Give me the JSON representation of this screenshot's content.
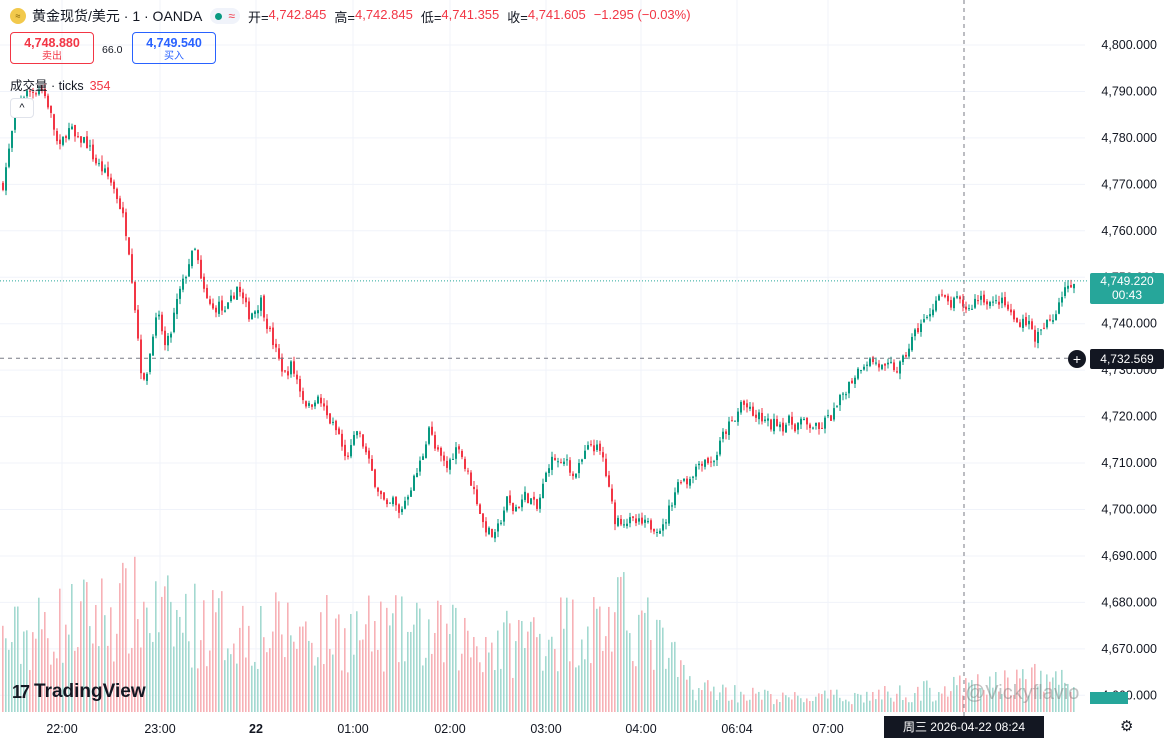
{
  "header": {
    "symbol": "黄金现货/美元 · 1 · OANDA",
    "logo_text": "≈",
    "market_wave": "≈",
    "open_label": "开=",
    "open_value": "4,742.845",
    "high_label": "高=",
    "high_value": "4,742.845",
    "low_label": "低=",
    "low_value": "4,741.355",
    "close_label": "收=",
    "close_value": "4,741.605",
    "change": "−1.295 (−0.03%)"
  },
  "trade": {
    "sell_price": "4,748.880",
    "sell_label": "卖出",
    "spread": "66.0",
    "buy_price": "4,749.540",
    "buy_label": "买入"
  },
  "volume_indicator": {
    "label": "成交量 · ticks",
    "value": "354",
    "collapse_icon": "^"
  },
  "price_labels": {
    "current_price": "4,749.220",
    "countdown": "00:43",
    "crosshair_price": "4,732.569",
    "crosshair_icon": "+"
  },
  "time_tooltip": "周三  2026-04-22   08:24",
  "brand": "TradingView",
  "brand_icon": "17",
  "watermark": "@Vickyflavio",
  "colors": {
    "up": "#089981",
    "down": "#f23645",
    "up_volume": "#a3d9d0",
    "down_volume": "#f7b1b6",
    "grid": "#f0f3fa",
    "current_line": "#26a69a"
  },
  "chart_data": {
    "type": "candlestick",
    "symbol": "XAUUSD",
    "interval": "1",
    "x_ticks": [
      "22:00",
      "23:00",
      "22",
      "01:00",
      "02:00",
      "03:00",
      "04:00",
      "06:04",
      "07:00"
    ],
    "y_ticks": [
      "4,800.000",
      "4,790.000",
      "4,780.000",
      "4,770.000",
      "4,760.000",
      "4,750.000",
      "4,740.000",
      "4,730.000",
      "4,720.000",
      "4,710.000",
      "4,700.000",
      "4,690.000",
      "4,680.000",
      "4,670.000",
      "4,660.000"
    ],
    "ylim": [
      4660,
      4800
    ],
    "close_path": [
      {
        "t": 0,
        "p": 4770
      },
      {
        "t": 5,
        "p": 4776
      },
      {
        "t": 9,
        "p": 4781
      },
      {
        "t": 14,
        "p": 4787
      },
      {
        "t": 20,
        "p": 4789
      },
      {
        "t": 26,
        "p": 4790
      },
      {
        "t": 32,
        "p": 4790
      },
      {
        "t": 38,
        "p": 4791
      },
      {
        "t": 44,
        "p": 4788
      },
      {
        "t": 50,
        "p": 4783
      },
      {
        "t": 56,
        "p": 4777
      },
      {
        "t": 62,
        "p": 4781
      },
      {
        "t": 68,
        "p": 4782
      },
      {
        "t": 74,
        "p": 4779
      },
      {
        "t": 80,
        "p": 4780
      },
      {
        "t": 86,
        "p": 4778
      },
      {
        "t": 92,
        "p": 4775
      },
      {
        "t": 100,
        "p": 4773
      },
      {
        "t": 107,
        "p": 4771
      },
      {
        "t": 113,
        "p": 4768
      },
      {
        "t": 119,
        "p": 4764
      },
      {
        "t": 125,
        "p": 4758
      },
      {
        "t": 130,
        "p": 4748
      },
      {
        "t": 135,
        "p": 4737
      },
      {
        "t": 140,
        "p": 4726
      },
      {
        "t": 146,
        "p": 4732
      },
      {
        "t": 151,
        "p": 4740
      },
      {
        "t": 157,
        "p": 4741
      },
      {
        "t": 162,
        "p": 4735
      },
      {
        "t": 167,
        "p": 4737
      },
      {
        "t": 172,
        "p": 4743
      },
      {
        "t": 177,
        "p": 4747
      },
      {
        "t": 182,
        "p": 4750
      },
      {
        "t": 187,
        "p": 4754
      },
      {
        "t": 193,
        "p": 4756
      },
      {
        "t": 198,
        "p": 4749
      },
      {
        "t": 204,
        "p": 4745
      },
      {
        "t": 210,
        "p": 4743
      },
      {
        "t": 216,
        "p": 4744
      },
      {
        "t": 222,
        "p": 4742
      },
      {
        "t": 228,
        "p": 4745
      },
      {
        "t": 234,
        "p": 4748
      },
      {
        "t": 240,
        "p": 4745
      },
      {
        "t": 246,
        "p": 4742
      },
      {
        "t": 252,
        "p": 4743
      },
      {
        "t": 258,
        "p": 4745
      },
      {
        "t": 264,
        "p": 4740
      },
      {
        "t": 270,
        "p": 4736
      },
      {
        "t": 276,
        "p": 4732
      },
      {
        "t": 282,
        "p": 4729
      },
      {
        "t": 288,
        "p": 4731
      },
      {
        "t": 294,
        "p": 4728
      },
      {
        "t": 300,
        "p": 4724
      },
      {
        "t": 306,
        "p": 4722
      },
      {
        "t": 312,
        "p": 4724
      },
      {
        "t": 318,
        "p": 4723
      },
      {
        "t": 324,
        "p": 4720
      },
      {
        "t": 330,
        "p": 4718
      },
      {
        "t": 336,
        "p": 4716
      },
      {
        "t": 342,
        "p": 4711
      },
      {
        "t": 348,
        "p": 4713
      },
      {
        "t": 354,
        "p": 4717
      },
      {
        "t": 360,
        "p": 4714
      },
      {
        "t": 366,
        "p": 4710
      },
      {
        "t": 372,
        "p": 4706
      },
      {
        "t": 378,
        "p": 4703
      },
      {
        "t": 384,
        "p": 4700
      },
      {
        "t": 390,
        "p": 4702
      },
      {
        "t": 396,
        "p": 4699
      },
      {
        "t": 402,
        "p": 4702
      },
      {
        "t": 408,
        "p": 4705
      },
      {
        "t": 414,
        "p": 4708
      },
      {
        "t": 420,
        "p": 4712
      },
      {
        "t": 426,
        "p": 4718
      },
      {
        "t": 432,
        "p": 4713
      },
      {
        "t": 438,
        "p": 4711
      },
      {
        "t": 444,
        "p": 4709
      },
      {
        "t": 450,
        "p": 4712
      },
      {
        "t": 456,
        "p": 4714
      },
      {
        "t": 462,
        "p": 4709
      },
      {
        "t": 468,
        "p": 4706
      },
      {
        "t": 474,
        "p": 4702
      },
      {
        "t": 480,
        "p": 4697
      },
      {
        "t": 486,
        "p": 4695
      },
      {
        "t": 492,
        "p": 4694
      },
      {
        "t": 498,
        "p": 4698
      },
      {
        "t": 504,
        "p": 4702
      },
      {
        "t": 510,
        "p": 4700
      },
      {
        "t": 516,
        "p": 4701
      },
      {
        "t": 522,
        "p": 4703
      },
      {
        "t": 528,
        "p": 4702
      },
      {
        "t": 534,
        "p": 4700
      },
      {
        "t": 540,
        "p": 4705
      },
      {
        "t": 546,
        "p": 4710
      },
      {
        "t": 552,
        "p": 4711
      },
      {
        "t": 558,
        "p": 4709
      },
      {
        "t": 564,
        "p": 4711
      },
      {
        "t": 570,
        "p": 4707
      },
      {
        "t": 576,
        "p": 4709
      },
      {
        "t": 582,
        "p": 4712
      },
      {
        "t": 588,
        "p": 4714
      },
      {
        "t": 594,
        "p": 4713
      },
      {
        "t": 600,
        "p": 4711
      },
      {
        "t": 606,
        "p": 4704
      },
      {
        "t": 612,
        "p": 4698
      },
      {
        "t": 660,
        "p": 4696
      },
      {
        "t": 666,
        "p": 4700
      },
      {
        "t": 672,
        "p": 4704
      },
      {
        "t": 678,
        "p": 4707
      },
      {
        "t": 684,
        "p": 4706
      },
      {
        "t": 690,
        "p": 4708
      },
      {
        "t": 696,
        "p": 4710
      },
      {
        "t": 702,
        "p": 4711
      },
      {
        "t": 708,
        "p": 4710
      },
      {
        "t": 714,
        "p": 4712
      },
      {
        "t": 720,
        "p": 4716
      },
      {
        "t": 726,
        "p": 4718
      },
      {
        "t": 732,
        "p": 4719
      },
      {
        "t": 738,
        "p": 4723
      },
      {
        "t": 744,
        "p": 4722
      },
      {
        "t": 750,
        "p": 4720
      },
      {
        "t": 756,
        "p": 4720
      },
      {
        "t": 762,
        "p": 4719
      },
      {
        "t": 768,
        "p": 4718
      },
      {
        "t": 774,
        "p": 4719
      },
      {
        "t": 780,
        "p": 4718
      },
      {
        "t": 786,
        "p": 4719
      },
      {
        "t": 792,
        "p": 4718
      },
      {
        "t": 798,
        "p": 4719
      },
      {
        "t": 804,
        "p": 4718
      },
      {
        "t": 810,
        "p": 4718
      },
      {
        "t": 816,
        "p": 4717
      },
      {
        "t": 822,
        "p": 4719
      },
      {
        "t": 828,
        "p": 4720
      },
      {
        "t": 834,
        "p": 4722
      },
      {
        "t": 840,
        "p": 4725
      },
      {
        "t": 846,
        "p": 4727
      },
      {
        "t": 852,
        "p": 4729
      },
      {
        "t": 858,
        "p": 4731
      },
      {
        "t": 864,
        "p": 4732
      },
      {
        "t": 870,
        "p": 4732
      },
      {
        "t": 876,
        "p": 4731
      },
      {
        "t": 882,
        "p": 4730
      },
      {
        "t": 888,
        "p": 4731
      },
      {
        "t": 894,
        "p": 4730
      },
      {
        "t": 900,
        "p": 4732
      },
      {
        "t": 906,
        "p": 4735
      },
      {
        "t": 912,
        "p": 4738
      },
      {
        "t": 918,
        "p": 4740
      },
      {
        "t": 924,
        "p": 4741
      },
      {
        "t": 930,
        "p": 4744
      },
      {
        "t": 936,
        "p": 4746
      },
      {
        "t": 942,
        "p": 4745
      },
      {
        "t": 948,
        "p": 4744
      },
      {
        "t": 954,
        "p": 4745
      },
      {
        "t": 960,
        "p": 4744
      },
      {
        "t": 966,
        "p": 4743
      },
      {
        "t": 972,
        "p": 4745
      },
      {
        "t": 978,
        "p": 4746
      },
      {
        "t": 984,
        "p": 4745
      },
      {
        "t": 990,
        "p": 4744
      },
      {
        "t": 996,
        "p": 4745
      },
      {
        "t": 1002,
        "p": 4744
      },
      {
        "t": 1008,
        "p": 4742
      },
      {
        "t": 1014,
        "p": 4740
      },
      {
        "t": 1020,
        "p": 4741
      },
      {
        "t": 1026,
        "p": 4740
      },
      {
        "t": 1032,
        "p": 4737
      },
      {
        "t": 1038,
        "p": 4738
      },
      {
        "t": 1044,
        "p": 4740
      },
      {
        "t": 1050,
        "p": 4741
      },
      {
        "t": 1056,
        "p": 4745
      },
      {
        "t": 1062,
        "p": 4748
      },
      {
        "t": 1068,
        "p": 4747
      },
      {
        "t": 1071,
        "p": 4749
      }
    ],
    "volume_trend": [
      {
        "t": 0,
        "v": 62
      },
      {
        "t": 60,
        "v": 78
      },
      {
        "t": 130,
        "v": 92
      },
      {
        "t": 170,
        "v": 80
      },
      {
        "t": 260,
        "v": 72
      },
      {
        "t": 330,
        "v": 70
      },
      {
        "t": 420,
        "v": 68
      },
      {
        "t": 500,
        "v": 60
      },
      {
        "t": 540,
        "v": 70
      },
      {
        "t": 600,
        "v": 78
      },
      {
        "t": 630,
        "v": 85
      },
      {
        "t": 660,
        "v": 55
      },
      {
        "t": 690,
        "v": 22
      },
      {
        "t": 780,
        "v": 12
      },
      {
        "t": 860,
        "v": 14
      },
      {
        "t": 940,
        "v": 20
      },
      {
        "t": 1020,
        "v": 28
      },
      {
        "t": 1071,
        "v": 30
      }
    ],
    "current_price": 4749.22,
    "crosshair_price": 4732.569,
    "crosshair_time": "08:24"
  }
}
